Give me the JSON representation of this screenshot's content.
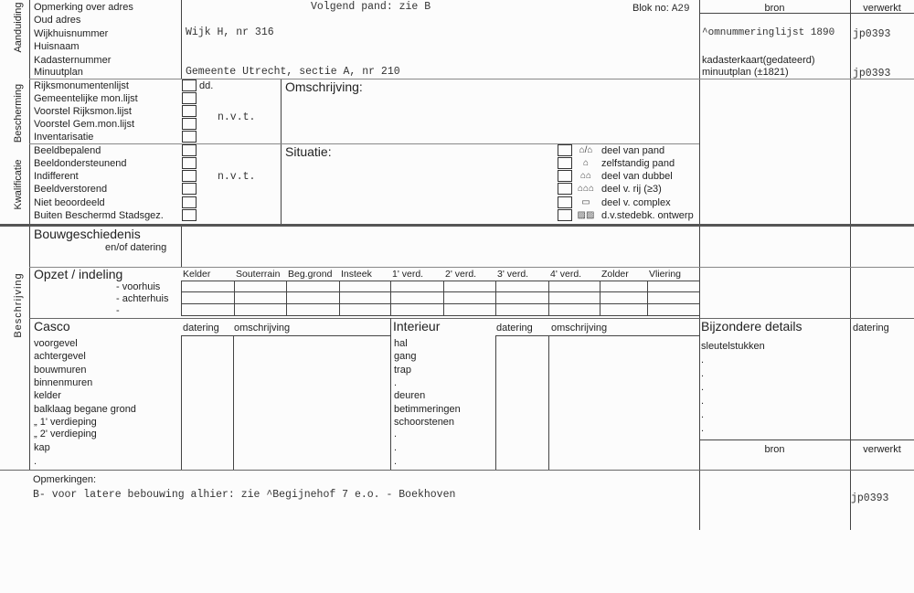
{
  "sections": {
    "aanduiding": "Aanduiding",
    "bescherming": "Bescherming",
    "kwalificatie": "Kwalificatie",
    "beschrijving": "Beschrijving"
  },
  "aanduiding": {
    "labels": [
      "Opmerking over adres",
      "Oud adres",
      "Wijkhuisnummer",
      "Huisnaam",
      "Kadasternummer",
      "Minuutplan"
    ],
    "values": {
      "opmerking": "Volgend pand: zie B",
      "wijkhuisnummer": "Wijk H, nr 316",
      "minuutplan": "Gemeente Utrecht, sectie A, nr 210"
    },
    "blok_label": "Blok no:",
    "blok_value": "A29"
  },
  "bron": {
    "header": "bron",
    "verwerkt_header": "verwerkt",
    "rows": [
      {
        "bron": "^omnummeringlijst 1890",
        "verwerkt": "jp0393"
      },
      {
        "bron": "kadasterkaart(gedateerd)",
        "verwerkt": ""
      },
      {
        "bron": "minuutplan (±1821)",
        "verwerkt": "jp0393"
      }
    ]
  },
  "bescherming": {
    "labels": [
      "Rijksmonumentenlijst",
      "Gemeentelijke mon.lijst",
      "Voorstel Rijksmon.lijst",
      "Voorstel Gem.mon.lijst",
      "Inventarisatie"
    ],
    "dd": "dd.",
    "value": "n.v.t.",
    "omschrijving": "Omschrijving:"
  },
  "kwalificatie": {
    "labels": [
      "Beeldbepalend",
      "Beeldondersteunend",
      "Indifferent",
      "Beeldverstorend",
      "Niet  beoordeeld",
      "Buiten Beschermd Stadsgez."
    ],
    "value": "n.v.t.",
    "situatie": "Situatie:",
    "situatie_options": [
      {
        "label": "deel van pand",
        "icon": "house-part-icon"
      },
      {
        "label": "zelfstandig pand",
        "icon": "detached-house-icon"
      },
      {
        "label": "deel van dubbel",
        "icon": "semi-detached-icon"
      },
      {
        "label": "deel v. rij  (≥3)",
        "icon": "row-house-icon"
      },
      {
        "label": "deel v. complex",
        "icon": "complex-icon"
      },
      {
        "label": "d.v.stedebk. ontwerp",
        "icon": "urban-design-icon"
      }
    ]
  },
  "bouwgeschiedenis": {
    "title": "Bouwgeschiedenis",
    "subtitle": "en/of datering"
  },
  "opzet": {
    "title": "Opzet / indeling",
    "rows": [
      "- voorhuis",
      "- achterhuis",
      "-"
    ],
    "columns": [
      "Kelder",
      "Souterrain",
      "Beg.grond",
      "Insteek",
      "1' verd.",
      "2' verd.",
      "3' verd.",
      "4' verd.",
      "Zolder",
      "Vliering"
    ]
  },
  "casco": {
    "title": "Casco",
    "datering": "datering",
    "omschrijving": "omschrijving",
    "items": [
      "voorgevel",
      "achtergevel",
      "bouwmuren",
      "binnenmuren",
      "kelder",
      "balklaag begane grond",
      "„        1' verdieping",
      "„        2' verdieping",
      "kap",
      "."
    ]
  },
  "interieur": {
    "title": "Interieur",
    "datering": "datering",
    "omschrijving": "omschrijving",
    "items": [
      "hal",
      "gang",
      "trap",
      ".",
      "deuren",
      "betimmeringen",
      "schoorstenen",
      ".",
      ".",
      "."
    ]
  },
  "bijzondere": {
    "title": "Bijzondere details",
    "datering": "datering",
    "items": [
      "sleutelstukken",
      ".",
      ".",
      ".",
      ".",
      ".",
      "."
    ],
    "bron": "bron",
    "verwerkt": "verwerkt"
  },
  "opmerkingen": {
    "title": "Opmerkingen:",
    "text": "B- voor latere bebouwing alhier: zie ^Begijnehof 7 e.o. - Boekhoven",
    "verwerkt": "jp0393"
  }
}
